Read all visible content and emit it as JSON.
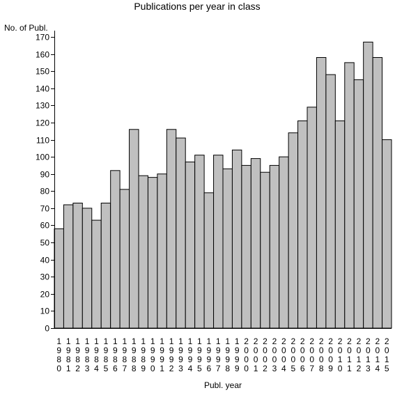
{
  "chart_data": {
    "type": "bar",
    "title": "Publications per year in class",
    "xlabel": "Publ. year",
    "ylabel": "No. of Publ.",
    "ylim": [
      0,
      170
    ],
    "ytick_step": 10,
    "grid": false,
    "categories": [
      "1980",
      "1981",
      "1982",
      "1983",
      "1984",
      "1985",
      "1986",
      "1987",
      "1988",
      "1989",
      "1990",
      "1991",
      "1992",
      "1993",
      "1994",
      "1995",
      "1996",
      "1997",
      "1998",
      "1999",
      "2000",
      "2001",
      "2002",
      "2003",
      "2004",
      "2005",
      "2006",
      "2007",
      "2008",
      "2009",
      "2010",
      "2011",
      "2012",
      "2013",
      "2014",
      "2015"
    ],
    "values": [
      58,
      72,
      73,
      70,
      63,
      73,
      92,
      81,
      116,
      89,
      88,
      90,
      116,
      111,
      97,
      101,
      79,
      101,
      93,
      104,
      95,
      99,
      91,
      95,
      100,
      114,
      121,
      129,
      158,
      148,
      121,
      155,
      145,
      167,
      158,
      110
    ],
    "colors": {
      "bar_fill": "#c0c0c0",
      "bar_stroke": "#000000"
    }
  }
}
